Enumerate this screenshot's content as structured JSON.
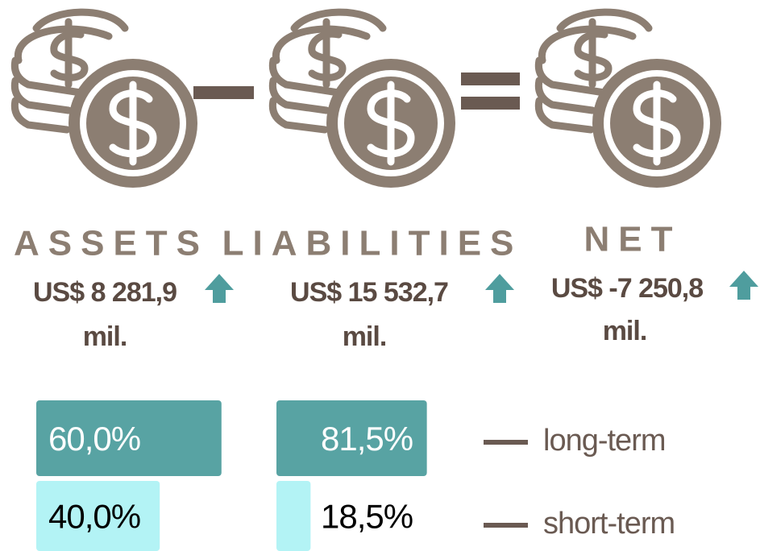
{
  "columns": [
    {
      "title": "ASSETS",
      "amount": "US$ 8 281,9",
      "unit": "mil.",
      "shares": [
        {
          "value": 60.0,
          "label": "60,0%"
        },
        {
          "value": 40.0,
          "label": "40,0%"
        }
      ]
    },
    {
      "title": "LIABILITIES",
      "amount": "US$ 15 532,7",
      "unit": "mil.",
      "shares": [
        {
          "value": 81.5,
          "label": "81,5%"
        },
        {
          "value": 18.5,
          "label": "18,5%"
        }
      ]
    },
    {
      "title": "NET",
      "amount": "US$ -7 250,8",
      "unit": "mil."
    }
  ],
  "legend": [
    "long-term",
    "short-term"
  ]
}
